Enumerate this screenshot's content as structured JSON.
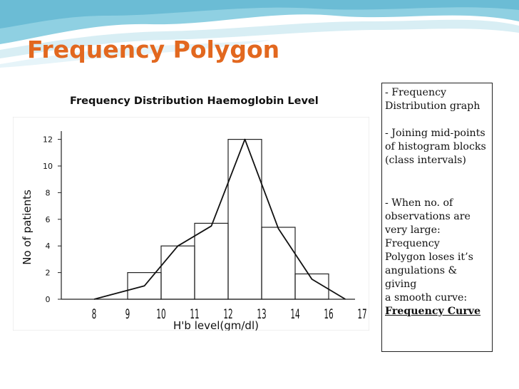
{
  "slide": {
    "title": "Frequency Polygon"
  },
  "chart_data": {
    "type": "bar",
    "title": "Frequency Distribution Haemoglobin Level",
    "xlabel": "H'b level(gm/dl)",
    "ylabel": "No of patients",
    "x_ticks": [
      "8",
      "9",
      "10",
      "11",
      "12",
      "13",
      "14",
      "16",
      "17"
    ],
    "y_ticks": [
      "0",
      "2",
      "4",
      "6",
      "8",
      "10",
      "12"
    ],
    "ylim": [
      0,
      13
    ],
    "histogram": [
      {
        "from": "9",
        "to": "10",
        "value": 2
      },
      {
        "from": "10",
        "to": "11",
        "value": 4
      },
      {
        "from": "11",
        "to": "12",
        "value": 5.7
      },
      {
        "from": "12",
        "to": "13",
        "value": 12
      },
      {
        "from": "13",
        "to": "14",
        "value": 5.4
      },
      {
        "from": "14",
        "to": "16",
        "value": 1.9
      }
    ],
    "polygon": [
      {
        "x": "8",
        "y": 0
      },
      {
        "x": "9.5",
        "y": 1
      },
      {
        "x": "10.5",
        "y": 4
      },
      {
        "x": "11.5",
        "y": 5.5
      },
      {
        "x": "12.5",
        "y": 12
      },
      {
        "x": "13.5",
        "y": 5.3
      },
      {
        "x": "15",
        "y": 1.5
      },
      {
        "x": "16.5",
        "y": 0
      }
    ]
  },
  "notes": {
    "lines": [
      "- Frequency",
      "  Distribution graph",
      "",
      "- Joining  mid-points",
      "  of histogram blocks",
      "  (class intervals)",
      "",
      "",
      "- When no. of",
      "  observations are",
      "  very large:",
      "Frequency",
      "  Polygon loses it’s",
      "  angulations &",
      "giving",
      "  a smooth curve:"
    ],
    "emphasis": "Frequency Curve"
  },
  "colors": {
    "title": "#e2681f",
    "banner_teal": "#7fc6db",
    "banner_light": "#c9e7f0"
  }
}
